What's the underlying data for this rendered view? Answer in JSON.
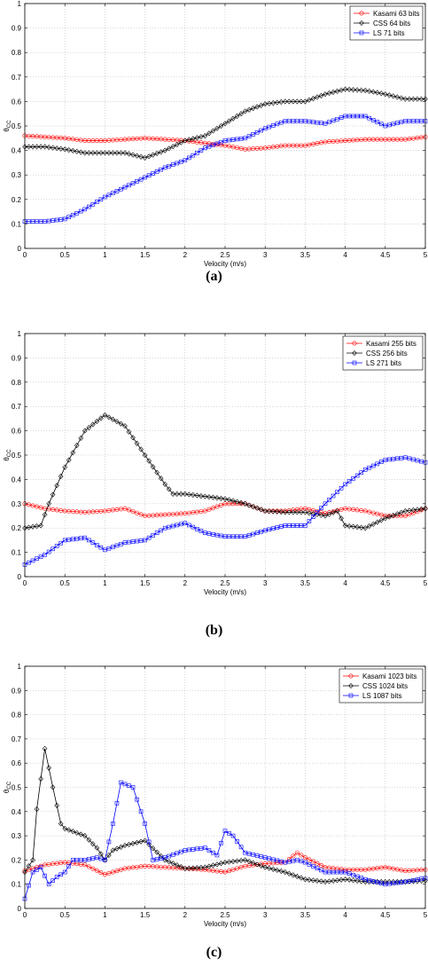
{
  "figure": {
    "captions": [
      "(a)",
      "(b)",
      "(c)"
    ]
  },
  "chart_data": [
    {
      "type": "line",
      "xlabel": "Velocity (m/s)",
      "ylabel": "θCC",
      "ylabel_main": "θ",
      "ylabel_sub": "CC",
      "xlim": [
        0,
        5
      ],
      "ylim": [
        0,
        1
      ],
      "xticks": [
        "0",
        "0.5",
        "1",
        "1.5",
        "2",
        "2.5",
        "3",
        "3.5",
        "4",
        "4.5",
        "5"
      ],
      "yticks": [
        "0",
        "0.1",
        "0.2",
        "0.3",
        "0.4",
        "0.5",
        "0.6",
        "0.7",
        "0.8",
        "0.9",
        "1"
      ],
      "grid": true,
      "legend_position": "top-right",
      "series": [
        {
          "name": "Kasami 63 bits",
          "color": "#ff0000",
          "marker": "circle",
          "x": [
            0,
            0.25,
            0.5,
            0.75,
            1,
            1.25,
            1.5,
            1.75,
            2,
            2.25,
            2.5,
            2.75,
            3,
            3.25,
            3.5,
            3.75,
            4,
            4.25,
            4.5,
            4.75,
            5
          ],
          "y": [
            0.46,
            0.455,
            0.45,
            0.44,
            0.44,
            0.445,
            0.45,
            0.445,
            0.44,
            0.43,
            0.42,
            0.405,
            0.41,
            0.42,
            0.42,
            0.435,
            0.44,
            0.445,
            0.445,
            0.445,
            0.455
          ]
        },
        {
          "name": "CSS 64 bits",
          "color": "#000000",
          "marker": "diamond",
          "x": [
            0,
            0.25,
            0.5,
            0.75,
            1,
            1.25,
            1.5,
            1.75,
            2,
            2.25,
            2.5,
            2.75,
            3,
            3.25,
            3.5,
            3.75,
            4,
            4.25,
            4.5,
            4.75,
            5
          ],
          "y": [
            0.415,
            0.415,
            0.405,
            0.39,
            0.39,
            0.39,
            0.37,
            0.4,
            0.44,
            0.46,
            0.51,
            0.56,
            0.59,
            0.6,
            0.6,
            0.63,
            0.65,
            0.645,
            0.63,
            0.61,
            0.61
          ]
        },
        {
          "name": "LS 71 bits",
          "color": "#0000ff",
          "marker": "square",
          "x": [
            0,
            0.25,
            0.5,
            0.75,
            1,
            1.25,
            1.5,
            1.75,
            2,
            2.25,
            2.5,
            2.75,
            3,
            3.25,
            3.5,
            3.75,
            4,
            4.25,
            4.5,
            4.75,
            5
          ],
          "y": [
            0.11,
            0.11,
            0.12,
            0.16,
            0.21,
            0.25,
            0.29,
            0.33,
            0.36,
            0.41,
            0.44,
            0.45,
            0.49,
            0.52,
            0.52,
            0.51,
            0.54,
            0.54,
            0.5,
            0.52,
            0.52
          ]
        }
      ]
    },
    {
      "type": "line",
      "xlabel": "Velocity (m/s)",
      "ylabel": "θCC",
      "ylabel_main": "θ",
      "ylabel_sub": "CC",
      "xlim": [
        0,
        5
      ],
      "ylim": [
        0,
        1
      ],
      "xticks": [
        "0",
        "0.5",
        "1",
        "1.5",
        "2",
        "2.5",
        "3",
        "3.5",
        "4",
        "4.5",
        "5"
      ],
      "yticks": [
        "0",
        "0.1",
        "0.2",
        "0.3",
        "0.4",
        "0.5",
        "0.6",
        "0.7",
        "0.8",
        "0.9",
        "1"
      ],
      "grid": true,
      "legend_position": "top-right",
      "series": [
        {
          "name": "Kasami 255 bits",
          "color": "#ff0000",
          "marker": "circle",
          "x": [
            0,
            0.25,
            0.5,
            0.75,
            1,
            1.25,
            1.5,
            1.75,
            2,
            2.25,
            2.5,
            2.75,
            3,
            3.25,
            3.5,
            3.75,
            4,
            4.25,
            4.5,
            4.75,
            5
          ],
          "y": [
            0.3,
            0.28,
            0.27,
            0.265,
            0.27,
            0.28,
            0.25,
            0.255,
            0.26,
            0.27,
            0.3,
            0.3,
            0.27,
            0.27,
            0.28,
            0.26,
            0.28,
            0.27,
            0.25,
            0.25,
            0.28
          ]
        },
        {
          "name": "CSS 256 bits",
          "color": "#000000",
          "marker": "diamond",
          "x": [
            0,
            0.2,
            0.3,
            0.5,
            0.75,
            1,
            1.25,
            1.5,
            1.75,
            1.85,
            2,
            2.25,
            2.5,
            2.75,
            3,
            3.25,
            3.5,
            3.75,
            3.9,
            4,
            4.25,
            4.5,
            4.75,
            5
          ],
          "y": [
            0.2,
            0.21,
            0.3,
            0.45,
            0.6,
            0.665,
            0.62,
            0.5,
            0.38,
            0.34,
            0.34,
            0.33,
            0.32,
            0.3,
            0.27,
            0.265,
            0.265,
            0.25,
            0.27,
            0.21,
            0.2,
            0.24,
            0.27,
            0.28
          ]
        },
        {
          "name": "LS 271 bits",
          "color": "#0000ff",
          "marker": "square",
          "x": [
            0,
            0.25,
            0.5,
            0.75,
            1,
            1.25,
            1.5,
            1.75,
            2,
            2.25,
            2.5,
            2.75,
            3,
            3.25,
            3.5,
            3.75,
            4,
            4.25,
            4.5,
            4.75,
            5
          ],
          "y": [
            0.05,
            0.09,
            0.15,
            0.16,
            0.11,
            0.14,
            0.15,
            0.2,
            0.22,
            0.18,
            0.165,
            0.165,
            0.19,
            0.21,
            0.21,
            0.3,
            0.38,
            0.44,
            0.48,
            0.49,
            0.47
          ]
        }
      ]
    },
    {
      "type": "line",
      "xlabel": "Velocity (m/s)",
      "ylabel": "θCC",
      "ylabel_main": "θ",
      "ylabel_sub": "CC",
      "xlim": [
        0,
        5
      ],
      "ylim": [
        0,
        1
      ],
      "xticks": [
        "0",
        "0.5",
        "1",
        "1.5",
        "2",
        "2.5",
        "3",
        "3.5",
        "4",
        "4.5",
        "5"
      ],
      "yticks": [
        "0",
        "0.1",
        "0.2",
        "0.3",
        "0.4",
        "0.5",
        "0.6",
        "0.7",
        "0.8",
        "0.9",
        "1"
      ],
      "grid": true,
      "legend_position": "top-right",
      "series": [
        {
          "name": "Kasami 1023 bits",
          "color": "#ff0000",
          "marker": "circle",
          "x": [
            0,
            0.25,
            0.5,
            0.75,
            1,
            1.25,
            1.5,
            1.75,
            2,
            2.25,
            2.5,
            2.75,
            3,
            3.25,
            3.4,
            3.5,
            3.75,
            4,
            4.25,
            4.5,
            4.75,
            5
          ],
          "y": [
            0.155,
            0.18,
            0.19,
            0.18,
            0.14,
            0.165,
            0.175,
            0.17,
            0.165,
            0.16,
            0.15,
            0.175,
            0.185,
            0.19,
            0.23,
            0.21,
            0.17,
            0.16,
            0.16,
            0.17,
            0.155,
            0.16
          ]
        },
        {
          "name": "CSS 1024 bits",
          "color": "#000000",
          "marker": "diamond",
          "x": [
            0,
            0.1,
            0.15,
            0.25,
            0.35,
            0.45,
            0.5,
            0.75,
            0.9,
            1,
            1.1,
            1.25,
            1.5,
            1.75,
            2,
            2.25,
            2.5,
            2.75,
            3,
            3.25,
            3.5,
            3.75,
            4,
            4.25,
            4.5,
            4.75,
            5
          ],
          "y": [
            0.15,
            0.2,
            0.41,
            0.66,
            0.5,
            0.35,
            0.33,
            0.3,
            0.25,
            0.2,
            0.24,
            0.26,
            0.28,
            0.2,
            0.165,
            0.17,
            0.19,
            0.2,
            0.17,
            0.15,
            0.12,
            0.11,
            0.12,
            0.11,
            0.11,
            0.11,
            0.115
          ]
        },
        {
          "name": "LS 1087 bits",
          "color": "#0000ff",
          "marker": "square",
          "x": [
            0,
            0.1,
            0.2,
            0.3,
            0.4,
            0.5,
            0.6,
            0.75,
            0.9,
            1,
            1.1,
            1.2,
            1.35,
            1.5,
            1.6,
            1.75,
            2,
            2.25,
            2.4,
            2.5,
            2.6,
            2.75,
            3,
            3.25,
            3.4,
            3.5,
            3.75,
            4,
            4.25,
            4.5,
            4.75,
            5
          ],
          "y": [
            0.04,
            0.15,
            0.17,
            0.1,
            0.13,
            0.15,
            0.2,
            0.2,
            0.21,
            0.2,
            0.35,
            0.52,
            0.5,
            0.35,
            0.2,
            0.21,
            0.24,
            0.25,
            0.22,
            0.32,
            0.3,
            0.23,
            0.21,
            0.19,
            0.2,
            0.19,
            0.15,
            0.15,
            0.12,
            0.1,
            0.11,
            0.125
          ]
        }
      ]
    }
  ]
}
